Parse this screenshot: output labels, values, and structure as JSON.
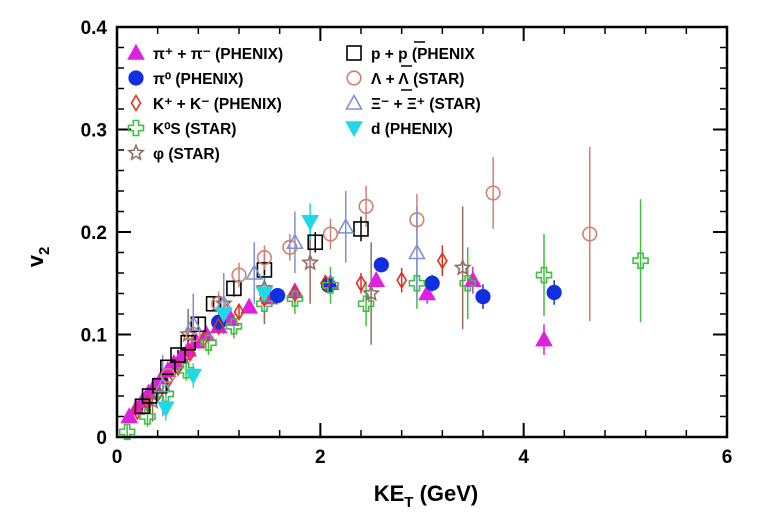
{
  "chart_data": {
    "type": "scatter",
    "title": "",
    "xlabel": "KE",
    "xlabel_sub": "T",
    "xlabel_unit": " (GeV)",
    "ylabel": "v",
    "ylabel_sub": "2",
    "xlim": [
      0,
      6
    ],
    "ylim": [
      0,
      0.4
    ],
    "xticks": [
      0,
      2,
      4,
      6
    ],
    "xtick_labels": [
      "0",
      "2",
      "4",
      "6"
    ],
    "yticks": [
      0,
      0.1,
      0.2,
      0.3,
      0.4
    ],
    "ytick_labels": [
      "0",
      "0.1",
      "0.2",
      "0.3",
      "0.4"
    ],
    "grid": false,
    "legend_position": "top-left",
    "series": [
      {
        "name": "π+ + π- (PHENIX)",
        "legend_text": "π⁺ + π⁻ (PHENIX)",
        "marker": "triangle-up",
        "fill": true,
        "color": "#e020e0",
        "x": [
          0.12,
          0.19,
          0.25,
          0.31,
          0.37,
          0.44,
          0.5,
          0.56,
          0.63,
          0.7,
          0.78,
          0.88,
          1.0,
          1.12,
          1.3,
          1.5,
          1.75,
          2.1,
          2.55,
          3.05,
          3.5,
          4.2
        ],
        "y": [
          0.02,
          0.028,
          0.035,
          0.043,
          0.05,
          0.058,
          0.065,
          0.072,
          0.078,
          0.085,
          0.093,
          0.1,
          0.108,
          0.115,
          0.127,
          0.136,
          0.142,
          0.15,
          0.153,
          0.14,
          0.153,
          0.095
        ],
        "err": [
          0.004,
          0.004,
          0.004,
          0.004,
          0.004,
          0.004,
          0.004,
          0.004,
          0.004,
          0.004,
          0.004,
          0.004,
          0.004,
          0.004,
          0.004,
          0.005,
          0.005,
          0.006,
          0.007,
          0.01,
          0.013,
          0.015
        ]
      },
      {
        "name": "π0 (PHENIX)",
        "legend_text": "π⁰ (PHENIX)",
        "marker": "circle",
        "fill": true,
        "color": "#1030e0",
        "x": [
          1.0,
          1.58,
          2.08,
          2.6,
          3.1,
          3.6,
          4.3
        ],
        "y": [
          0.112,
          0.138,
          0.148,
          0.168,
          0.15,
          0.137,
          0.141
        ],
        "err": [
          0.005,
          0.005,
          0.006,
          0.007,
          0.008,
          0.012,
          0.012
        ]
      },
      {
        "name": "K+ + K- (PHENIX)",
        "legend_text": "K⁺ + K⁻ (PHENIX)",
        "marker": "diamond",
        "fill": false,
        "color": "#e03020",
        "x": [
          0.2,
          0.3,
          0.4,
          0.5,
          0.6,
          0.72,
          0.85,
          1.0,
          1.2,
          1.45,
          1.75,
          2.05,
          2.4,
          2.8,
          3.2
        ],
        "y": [
          0.025,
          0.033,
          0.042,
          0.055,
          0.068,
          0.082,
          0.095,
          0.108,
          0.122,
          0.135,
          0.14,
          0.15,
          0.15,
          0.153,
          0.172
        ],
        "err": [
          0.004,
          0.004,
          0.004,
          0.005,
          0.005,
          0.005,
          0.005,
          0.006,
          0.006,
          0.006,
          0.007,
          0.008,
          0.01,
          0.012,
          0.015
        ]
      },
      {
        "name": "KS0 (STAR)",
        "legend_text": "K⁰S (STAR)",
        "marker": "cross",
        "fill": false,
        "color": "#40c040",
        "x": [
          0.1,
          0.3,
          0.48,
          0.68,
          0.9,
          1.15,
          1.45,
          1.75,
          2.1,
          2.45,
          2.95,
          3.45,
          4.2,
          5.15
        ],
        "y": [
          0.005,
          0.02,
          0.042,
          0.065,
          0.092,
          0.108,
          0.13,
          0.135,
          0.148,
          0.13,
          0.15,
          0.15,
          0.158,
          0.172
        ],
        "err": [
          0.008,
          0.01,
          0.01,
          0.01,
          0.012,
          0.012,
          0.015,
          0.015,
          0.018,
          0.022,
          0.025,
          0.035,
          0.04,
          0.06
        ]
      },
      {
        "name": "φ (STAR)",
        "legend_text": "φ (STAR)",
        "marker": "star",
        "fill": false,
        "color": "#907060",
        "x": [
          0.35,
          0.7,
          1.05,
          1.45,
          1.9,
          2.5,
          3.4
        ],
        "y": [
          0.035,
          0.1,
          0.13,
          0.145,
          0.17,
          0.14,
          0.165
        ],
        "err": [
          0.02,
          0.025,
          0.03,
          0.035,
          0.04,
          0.05,
          0.06
        ]
      },
      {
        "name": "p + p̄ (PHENIX)",
        "legend_text": "p + p (PHENIX",
        "marker": "square",
        "fill": false,
        "color": "#000000",
        "x": [
          0.25,
          0.32,
          0.42,
          0.5,
          0.6,
          0.7,
          0.8,
          0.95,
          1.15,
          1.45,
          1.95,
          2.4
        ],
        "y": [
          0.03,
          0.04,
          0.05,
          0.068,
          0.08,
          0.092,
          0.11,
          0.13,
          0.145,
          0.163,
          0.19,
          0.203
        ],
        "err": [
          0.004,
          0.004,
          0.004,
          0.005,
          0.005,
          0.006,
          0.006,
          0.007,
          0.008,
          0.008,
          0.01,
          0.012
        ]
      },
      {
        "name": "Λ + Λ̄ (STAR)",
        "legend_text": "Λ + Λ (STAR)",
        "marker": "circle",
        "fill": false,
        "color": "#d08070",
        "x": [
          0.5,
          0.75,
          1.0,
          1.2,
          1.45,
          1.7,
          2.1,
          2.45,
          2.95,
          3.7,
          4.65
        ],
        "y": [
          0.06,
          0.1,
          0.13,
          0.158,
          0.175,
          0.185,
          0.198,
          0.225,
          0.212,
          0.238,
          0.198
        ],
        "err": [
          0.01,
          0.01,
          0.012,
          0.012,
          0.012,
          0.013,
          0.015,
          0.02,
          0.025,
          0.035,
          0.085
        ]
      },
      {
        "name": "Ξ- + Ξ̄+ (STAR)",
        "legend_text": "Ξ⁻ + Ξ⁺ (STAR)",
        "marker": "triangle-up",
        "fill": false,
        "color": "#8090d8",
        "x": [
          0.45,
          0.75,
          1.05,
          1.35,
          1.75,
          2.25,
          2.95
        ],
        "y": [
          0.05,
          0.11,
          0.13,
          0.16,
          0.19,
          0.205,
          0.18
        ],
        "err": [
          0.03,
          0.03,
          0.03,
          0.03,
          0.03,
          0.035,
          0.045
        ]
      },
      {
        "name": "d (PHENIX)",
        "legend_text": "d (PHENIX)",
        "marker": "triangle-down",
        "fill": true,
        "color": "#20d8e8",
        "x": [
          0.48,
          0.75,
          1.05,
          1.45,
          1.9
        ],
        "y": [
          0.028,
          0.06,
          0.12,
          0.14,
          0.21
        ],
        "err": [
          0.012,
          0.012,
          0.015,
          0.018,
          0.018
        ]
      }
    ]
  }
}
